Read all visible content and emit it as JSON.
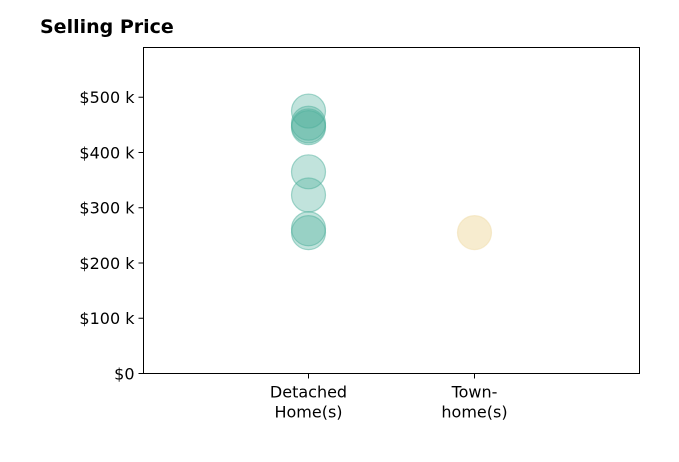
{
  "chart_data": {
    "type": "scatter",
    "title": "Selling Price",
    "xlabel": "",
    "ylabel": "",
    "categories": [
      "Detached\nHome(s)",
      "Town-\nhome(s)"
    ],
    "ylim": [
      0,
      590000
    ],
    "y_ticks": [
      0,
      100000,
      200000,
      300000,
      400000,
      500000
    ],
    "y_tick_labels": [
      "$0",
      "$100 k",
      "$200 k",
      "$300 k",
      "$400 k",
      "$500 k"
    ],
    "grid": false,
    "series": [
      {
        "category": "Detached\nHome(s)",
        "color": "#4daf9c",
        "values": [
          475000,
          453000,
          448000,
          445000,
          365000,
          323000,
          262000,
          255000
        ]
      },
      {
        "category": "Town-\nhome(s)",
        "color": "#f0dca8",
        "values": [
          255000
        ]
      }
    ]
  }
}
